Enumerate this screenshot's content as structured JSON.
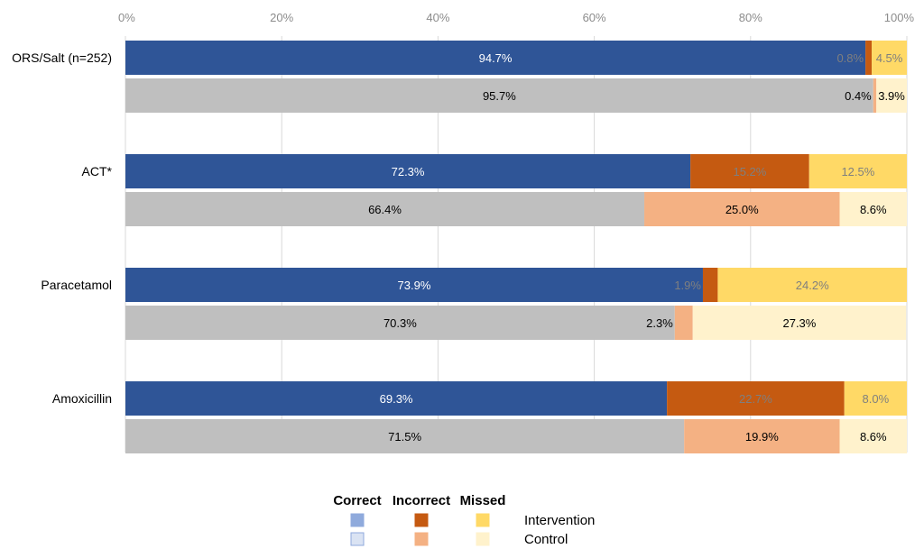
{
  "chart_data": {
    "type": "bar",
    "orientation": "horizontal-stacked-100",
    "xlim": [
      0,
      100
    ],
    "x_ticks": [
      "0%",
      "20%",
      "40%",
      "60%",
      "80%",
      "100%"
    ],
    "x_tick_values": [
      0,
      20,
      40,
      60,
      80,
      100
    ],
    "categories": [
      "ORS/Salt  (n=252)",
      "ACT*",
      "Paracetamol",
      "Amoxicillin"
    ],
    "groups": [
      "Intervention",
      "Control"
    ],
    "segments": [
      "Correct",
      "Incorrect",
      "Missed"
    ],
    "bars": [
      {
        "category": "ORS/Salt  (n=252)",
        "group": "Intervention",
        "values": [
          94.7,
          0.8,
          4.5
        ],
        "labels": [
          "94.7%",
          "0.8%",
          "4.5%"
        ]
      },
      {
        "category": "ORS/Salt  (n=252)",
        "group": "Control",
        "values": [
          95.7,
          0.4,
          3.9
        ],
        "labels": [
          "95.7%",
          "0.4%",
          "3.9%"
        ]
      },
      {
        "category": "ACT*",
        "group": "Intervention",
        "values": [
          72.3,
          15.2,
          12.5
        ],
        "labels": [
          "72.3%",
          "15.2%",
          "12.5%"
        ]
      },
      {
        "category": "ACT*",
        "group": "Control",
        "values": [
          66.4,
          25.0,
          8.6
        ],
        "labels": [
          "66.4%",
          "25.0%",
          "8.6%"
        ]
      },
      {
        "category": "Paracetamol",
        "group": "Intervention",
        "values": [
          73.9,
          1.9,
          24.2
        ],
        "labels": [
          "73.9%",
          "1.9%",
          "24.2%"
        ]
      },
      {
        "category": "Paracetamol",
        "group": "Control",
        "values": [
          70.3,
          2.3,
          27.3
        ],
        "labels": [
          "70.3%",
          "2.3%",
          "27.3%"
        ]
      },
      {
        "category": "Amoxicillin",
        "group": "Intervention",
        "values": [
          69.3,
          22.7,
          8.0
        ],
        "labels": [
          "69.3%",
          "22.7%",
          "8.0%"
        ]
      },
      {
        "category": "Amoxicillin",
        "group": "Control",
        "values": [
          71.5,
          19.9,
          8.6
        ],
        "labels": [
          "71.5%",
          "19.9%",
          "8.6%"
        ]
      }
    ],
    "colors": {
      "Intervention": {
        "Correct": "#2f5597",
        "Incorrect": "#c55a11",
        "Missed": "#ffd966"
      },
      "Control": {
        "Correct": "#bfbfbf",
        "Incorrect": "#f4b183",
        "Missed": "#fff2cc"
      }
    },
    "label_colors": {
      "Intervention": {
        "Correct": "#ffffff",
        "Incorrect": "#7f7f7f",
        "Missed": "#7f7f7f"
      },
      "Control": {
        "Correct": "#000000",
        "Incorrect": "#000000",
        "Missed": "#000000"
      }
    },
    "legend": {
      "headers": [
        "Correct",
        "Incorrect",
        "Missed"
      ],
      "rows": [
        "Intervention",
        "Control"
      ],
      "swatches": {
        "Intervention": [
          "#8faadc",
          "#c55a11",
          "#ffd966"
        ],
        "Control": [
          "#dae3f3",
          "#f4b183",
          "#fff2cc"
        ]
      },
      "swatch_borders": {
        "Intervention": [
          "#8faadc",
          "#c55a11",
          "#ffd966"
        ],
        "Control": [
          "#8faadc",
          "#f4b183",
          "#fff2cc"
        ]
      },
      "placement": "bottom-center"
    },
    "grid": true,
    "grid_color": "#d9d9d9"
  }
}
